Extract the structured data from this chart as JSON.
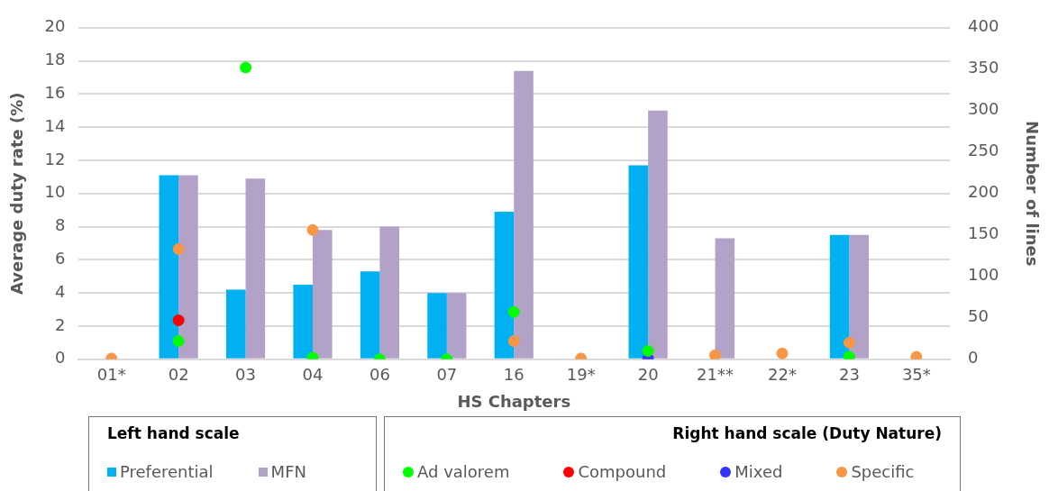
{
  "chart_data": {
    "type": "bar",
    "xlabel": "HS Chapters",
    "ylabel": "Average duty rate (%)",
    "y2label": "Number of lines",
    "categories": [
      "01*",
      "02",
      "03",
      "04",
      "06",
      "07",
      "16",
      "19*",
      "20",
      "21**",
      "22*",
      "23",
      "35*"
    ],
    "series": [
      {
        "name": "Preferential",
        "color": "#00b0f0",
        "values": [
          null,
          11.1,
          4.2,
          4.5,
          5.3,
          4.0,
          8.9,
          null,
          11.7,
          null,
          null,
          7.5,
          null
        ]
      },
      {
        "name": "MFN",
        "color": "#b3a2c7",
        "values": [
          null,
          11.1,
          10.9,
          7.8,
          8.0,
          4.0,
          17.4,
          null,
          15.0,
          7.3,
          null,
          7.5,
          null
        ]
      },
      {
        "name": "Ad valorem",
        "type": "scatter",
        "axis": "y2",
        "color": "#00ff00",
        "values": [
          null,
          22,
          352,
          2,
          0,
          0,
          57,
          null,
          10,
          null,
          null,
          3,
          null
        ]
      },
      {
        "name": "Compound",
        "type": "scatter",
        "axis": "y2",
        "color": "#ff0000",
        "values": [
          null,
          47,
          null,
          null,
          null,
          null,
          null,
          null,
          null,
          null,
          null,
          null,
          null
        ]
      },
      {
        "name": "Mixed",
        "type": "scatter",
        "axis": "y2",
        "color": "#3333ff",
        "values": [
          null,
          null,
          null,
          null,
          null,
          null,
          null,
          null,
          1,
          null,
          null,
          null,
          null
        ]
      },
      {
        "name": "Specific",
        "type": "scatter",
        "axis": "y2",
        "color": "#f79646",
        "values": [
          1,
          133,
          null,
          156,
          null,
          null,
          22,
          1,
          null,
          5,
          7,
          20,
          3
        ]
      }
    ],
    "ylim": [
      0,
      20
    ],
    "yticks": [
      0,
      2,
      4,
      6,
      8,
      10,
      12,
      14,
      16,
      18,
      20
    ],
    "y2lim": [
      0,
      400
    ],
    "y2ticks": [
      0,
      50,
      100,
      150,
      200,
      250,
      300,
      350,
      400
    ],
    "grid": "y",
    "marker": "circle",
    "legend": "bottom",
    "annotations": [
      "Left hand scale",
      "Right hand scale (Duty Nature)"
    ]
  }
}
